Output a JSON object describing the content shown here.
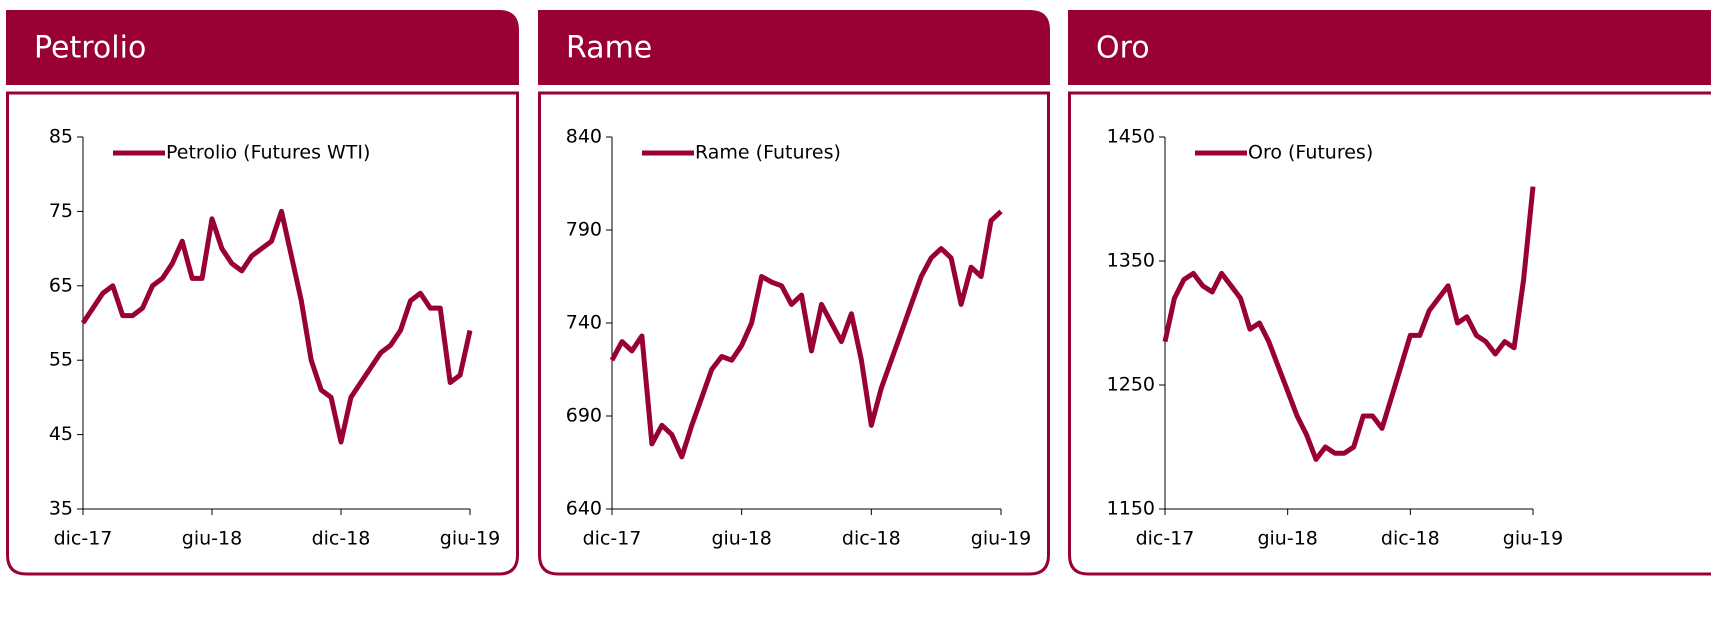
{
  "chart_data": [
    {
      "type": "line",
      "title": "Petrolio",
      "categories": [
        "dic-17",
        null,
        null,
        null,
        null,
        null,
        null,
        null,
        null,
        null,
        null,
        null,
        null,
        "giu-18",
        null,
        null,
        null,
        null,
        null,
        null,
        null,
        null,
        null,
        null,
        null,
        null,
        "dic-18",
        null,
        null,
        null,
        null,
        null,
        null,
        null,
        null,
        null,
        null,
        null,
        null,
        "giu-19"
      ],
      "series": [
        {
          "name": "Petrolio (Futures WTI)",
          "color": "#990033",
          "values": [
            60,
            62,
            64,
            65,
            61,
            61,
            62,
            65,
            66,
            68,
            71,
            66,
            66,
            74,
            70,
            68,
            67,
            69,
            70,
            71,
            75,
            69,
            63,
            55,
            51,
            50,
            44,
            50,
            52,
            54,
            56,
            57,
            59,
            63,
            64,
            62,
            62,
            52,
            53,
            59
          ]
        }
      ],
      "ylim": [
        35,
        85
      ],
      "yticks": [
        35,
        45,
        55,
        65,
        75,
        85
      ]
    },
    {
      "type": "line",
      "title": "Rame",
      "categories": [
        "dic-17",
        null,
        null,
        null,
        null,
        null,
        null,
        null,
        null,
        null,
        null,
        null,
        null,
        "giu-18",
        null,
        null,
        null,
        null,
        null,
        null,
        null,
        null,
        null,
        null,
        null,
        null,
        "dic-18",
        null,
        null,
        null,
        null,
        null,
        null,
        null,
        null,
        null,
        null,
        null,
        null,
        "giu-19"
      ],
      "series": [
        {
          "name": "Rame (Futures)",
          "color": "#990033",
          "values": [
            720,
            730,
            725,
            733,
            675,
            685,
            680,
            668,
            685,
            700,
            715,
            722,
            720,
            728,
            740,
            765,
            762,
            760,
            750,
            755,
            725,
            750,
            740,
            730,
            745,
            720,
            685,
            705,
            720,
            735,
            750,
            765,
            775,
            780,
            775,
            750,
            770,
            765,
            795,
            800
          ]
        }
      ],
      "ylim": [
        640,
        840
      ],
      "yticks": [
        640,
        690,
        740,
        790,
        840
      ]
    },
    {
      "type": "line",
      "title": "Oro",
      "categories": [
        "dic-17",
        null,
        null,
        null,
        null,
        null,
        null,
        null,
        null,
        null,
        null,
        null,
        null,
        "giu-18",
        null,
        null,
        null,
        null,
        null,
        null,
        null,
        null,
        null,
        null,
        null,
        null,
        "dic-18",
        null,
        null,
        null,
        null,
        null,
        null,
        null,
        null,
        null,
        null,
        null,
        null,
        "giu-19"
      ],
      "series": [
        {
          "name": "Oro (Futures)",
          "color": "#990033",
          "values": [
            1285,
            1320,
            1335,
            1340,
            1330,
            1325,
            1340,
            1330,
            1320,
            1295,
            1300,
            1285,
            1265,
            1245,
            1225,
            1210,
            1190,
            1200,
            1195,
            1195,
            1200,
            1225,
            1225,
            1215,
            1240,
            1265,
            1290,
            1290,
            1310,
            1320,
            1330,
            1300,
            1305,
            1290,
            1285,
            1275,
            1285,
            1280,
            1335,
            1410
          ]
        }
      ],
      "ylim": [
        1150,
        1450
      ],
      "yticks": [
        1150,
        1250,
        1350,
        1450
      ]
    }
  ]
}
